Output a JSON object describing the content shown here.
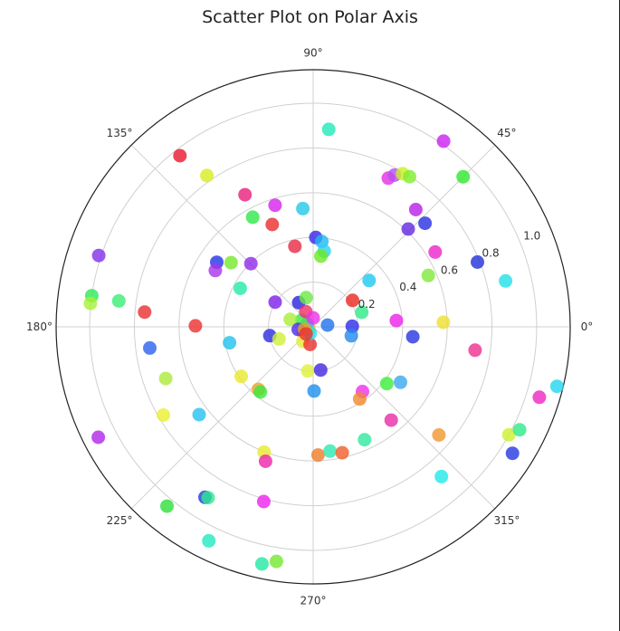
{
  "chart_data": {
    "type": "scatter",
    "coordinate_system": "polar",
    "title": "Scatter Plot on Polar Axis",
    "r_range": [
      0,
      1.15
    ],
    "r_ticks": [
      0.2,
      0.4,
      0.6,
      0.8,
      1.0
    ],
    "r_tick_labels": [
      "0.2",
      "0.4",
      "0.6",
      "0.8",
      "1.0"
    ],
    "theta_ticks_deg": [
      0,
      45,
      90,
      135,
      180,
      225,
      270,
      315
    ],
    "theta_tick_labels": [
      "0°",
      "45°",
      "90°",
      "135°",
      "180°",
      "225°",
      "270°",
      "315°"
    ],
    "grid": true,
    "marker_opacity": 0.8,
    "points": [
      {
        "theta": 54.9,
        "r": 1.015,
        "color": "#cc1ff0"
      },
      {
        "theta": 45.0,
        "r": 0.949,
        "color": "#2ee82e"
      },
      {
        "theta": 85.5,
        "r": 0.886,
        "color": "#22e8b8"
      },
      {
        "theta": 127.9,
        "r": 0.97,
        "color": "#e8162e"
      },
      {
        "theta": 125.1,
        "r": 0.827,
        "color": "#d4ed1f"
      },
      {
        "theta": 117.3,
        "r": 0.665,
        "color": "#e81e7a"
      },
      {
        "theta": 63.2,
        "r": 0.745,
        "color": "#e32fe3"
      },
      {
        "theta": 61.8,
        "r": 0.77,
        "color": "#b54ef2"
      },
      {
        "theta": 59.7,
        "r": 0.793,
        "color": "#c9f21f"
      },
      {
        "theta": 57.3,
        "r": 0.798,
        "color": "#7eed30"
      },
      {
        "theta": 48.8,
        "r": 0.697,
        "color": "#b81ee8"
      },
      {
        "theta": 42.8,
        "r": 0.682,
        "color": "#2830e0"
      },
      {
        "theta": 45.8,
        "r": 0.61,
        "color": "#6228e0"
      },
      {
        "theta": 31.5,
        "r": 0.64,
        "color": "#ee22ca"
      },
      {
        "theta": 24.0,
        "r": 0.564,
        "color": "#7ee83a"
      },
      {
        "theta": 21.5,
        "r": 0.79,
        "color": "#2030d8"
      },
      {
        "theta": 13.4,
        "r": 0.885,
        "color": "#22e0e8"
      },
      {
        "theta": 111.8,
        "r": 0.493,
        "color": "#e82d2d"
      },
      {
        "theta": 107.4,
        "r": 0.57,
        "color": "#d421ee"
      },
      {
        "theta": 95.0,
        "r": 0.531,
        "color": "#22c8e8"
      },
      {
        "theta": 88.3,
        "r": 0.4,
        "color": "#3525e8"
      },
      {
        "theta": 84.2,
        "r": 0.384,
        "color": "#22b8f0"
      },
      {
        "theta": 81.7,
        "r": 0.342,
        "color": "#2ecff0"
      },
      {
        "theta": 83.8,
        "r": 0.318,
        "color": "#6be81e"
      },
      {
        "theta": 102.8,
        "r": 0.369,
        "color": "#e82844"
      },
      {
        "theta": 118.9,
        "r": 0.56,
        "color": "#2ee84a"
      },
      {
        "theta": 142.0,
        "r": 0.466,
        "color": "#74e82a"
      },
      {
        "theta": 146.2,
        "r": 0.519,
        "color": "#2133e8"
      },
      {
        "theta": 150.1,
        "r": 0.505,
        "color": "#a934e8"
      },
      {
        "theta": 134.6,
        "r": 0.397,
        "color": "#8e2ae8"
      },
      {
        "theta": 152.2,
        "r": 0.369,
        "color": "#22eaaa"
      },
      {
        "theta": 39.6,
        "r": 0.325,
        "color": "#1ec8f0"
      },
      {
        "theta": 33.9,
        "r": 0.212,
        "color": "#e8281e"
      },
      {
        "theta": 16.6,
        "r": 0.227,
        "color": "#2ee88a"
      },
      {
        "theta": 4.3,
        "r": 0.373,
        "color": "#ee1ee8"
      },
      {
        "theta": 172.0,
        "r": 1.0,
        "color": "#2ee85a"
      },
      {
        "theta": 161.6,
        "r": 1.011,
        "color": "#8030e8"
      },
      {
        "theta": 174.0,
        "r": 1.002,
        "color": "#a7f037"
      },
      {
        "theta": 172.4,
        "r": 0.877,
        "color": "#3aee74"
      },
      {
        "theta": 179.5,
        "r": 0.527,
        "color": "#ee2e2e"
      },
      {
        "theta": 147.0,
        "r": 0.203,
        "color": "#7d20e8"
      },
      {
        "theta": 120.9,
        "r": 0.126,
        "color": "#2822e0"
      },
      {
        "theta": 103.6,
        "r": 0.134,
        "color": "#6ae844"
      },
      {
        "theta": 175.0,
        "r": 0.757,
        "color": "#e82e2e"
      },
      {
        "theta": 187.4,
        "r": 0.737,
        "color": "#2a62ec"
      },
      {
        "theta": 190.8,
        "r": 0.381,
        "color": "#1fc0ee"
      },
      {
        "theta": 199.3,
        "r": 0.699,
        "color": "#ade83a"
      },
      {
        "theta": 191.6,
        "r": 0.198,
        "color": "#2c2ce0"
      },
      {
        "theta": 199.6,
        "r": 0.162,
        "color": "#d0f037"
      },
      {
        "theta": 210.5,
        "r": 0.778,
        "color": "#e8f02e"
      },
      {
        "theta": 207.2,
        "r": 1.081,
        "color": "#b026e8"
      },
      {
        "theta": 217.6,
        "r": 0.644,
        "color": "#26c0ee"
      },
      {
        "theta": 214.6,
        "r": 0.391,
        "color": "#e8e82e"
      },
      {
        "theta": 228.8,
        "r": 0.372,
        "color": "#f0a030"
      },
      {
        "theta": 231.0,
        "r": 0.375,
        "color": "#3ae83a"
      },
      {
        "theta": 230.8,
        "r": 1.035,
        "color": "#2edf3a"
      },
      {
        "theta": 237.6,
        "r": 0.903,
        "color": "#2238e0"
      },
      {
        "theta": 238.4,
        "r": 0.897,
        "color": "#2eea8e"
      },
      {
        "theta": 244.0,
        "r": 1.065,
        "color": "#22e8c0"
      },
      {
        "theta": 257.8,
        "r": 1.085,
        "color": "#22e8a4"
      },
      {
        "theta": 261.1,
        "r": 1.062,
        "color": "#74e82e"
      },
      {
        "theta": 254.2,
        "r": 0.812,
        "color": "#ee22ee"
      },
      {
        "theta": 248.6,
        "r": 0.602,
        "color": "#e8e82e"
      },
      {
        "theta": 250.5,
        "r": 0.638,
        "color": "#ee22aa"
      },
      {
        "theta": 272.2,
        "r": 0.574,
        "color": "#f07a2a"
      },
      {
        "theta": 277.7,
        "r": 0.561,
        "color": "#2ee8b0"
      },
      {
        "theta": 283.0,
        "r": 0.578,
        "color": "#f05e2a"
      },
      {
        "theta": 294.5,
        "r": 0.555,
        "color": "#2ee8a0"
      },
      {
        "theta": 270.8,
        "r": 0.287,
        "color": "#1e8eee"
      },
      {
        "theta": 263.1,
        "r": 0.199,
        "color": "#e0f03a"
      },
      {
        "theta": 279.9,
        "r": 0.196,
        "color": "#4226e0"
      },
      {
        "theta": 307.3,
        "r": 0.364,
        "color": "#ee30e8"
      },
      {
        "theta": 302.8,
        "r": 0.384,
        "color": "#f0882e"
      },
      {
        "theta": 322.4,
        "r": 0.416,
        "color": "#3aee3a"
      },
      {
        "theta": 327.6,
        "r": 0.463,
        "color": "#3aa8ee"
      },
      {
        "theta": 309.9,
        "r": 0.544,
        "color": "#e82aa8"
      },
      {
        "theta": 319.3,
        "r": 0.742,
        "color": "#f0962e"
      },
      {
        "theta": 310.6,
        "r": 0.882,
        "color": "#22e8e8"
      },
      {
        "theta": 327.6,
        "r": 1.056,
        "color": "#2338e0"
      },
      {
        "theta": 331.1,
        "r": 1.0,
        "color": "#ccf02e"
      },
      {
        "theta": 333.5,
        "r": 1.032,
        "color": "#2ee88a"
      },
      {
        "theta": 342.7,
        "r": 1.06,
        "color": "#ee26c4"
      },
      {
        "theta": 346.3,
        "r": 1.123,
        "color": "#22d6ee"
      },
      {
        "theta": 351.8,
        "r": 0.732,
        "color": "#ee2e8e"
      },
      {
        "theta": 354.3,
        "r": 0.448,
        "color": "#2535e0"
      },
      {
        "theta": 2.0,
        "r": 0.583,
        "color": "#ede02e"
      },
      {
        "theta": 0.8,
        "r": 0.175,
        "color": "#2c2ce8"
      },
      {
        "theta": 6.7,
        "r": 0.065,
        "color": "#1e70ee"
      },
      {
        "theta": 346.7,
        "r": 0.175,
        "color": "#2288ee"
      },
      {
        "theta": 205.0,
        "r": 0.022,
        "color": "#f0b02e"
      },
      {
        "theta": 152.0,
        "r": 0.03,
        "color": "#2ec0ee"
      },
      {
        "theta": 208.0,
        "r": 0.05,
        "color": "#e8c02e"
      },
      {
        "theta": 150.0,
        "r": 0.06,
        "color": "#3ae84a"
      },
      {
        "theta": 116.0,
        "r": 0.076,
        "color": "#ee2e6a"
      },
      {
        "theta": 235.0,
        "r": 0.08,
        "color": "#e8e83a"
      },
      {
        "theta": 260.0,
        "r": 0.08,
        "color": "#e82e2e"
      },
      {
        "theta": 90.0,
        "r": 0.04,
        "color": "#ee2ee8"
      },
      {
        "theta": 162.0,
        "r": 0.108,
        "color": "#aaee3a"
      },
      {
        "theta": 190.0,
        "r": 0.068,
        "color": "#4a2ae8"
      },
      {
        "theta": 245.0,
        "r": 0.032,
        "color": "#22e0e8"
      },
      {
        "theta": 195.0,
        "r": 0.04,
        "color": "#e8a02e"
      },
      {
        "theta": 225.0,
        "r": 0.045,
        "color": "#ee2e2e"
      }
    ]
  }
}
